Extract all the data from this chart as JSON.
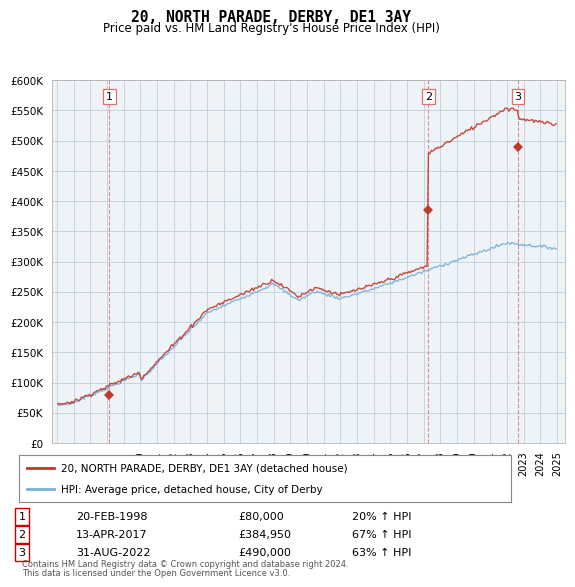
{
  "title": "20, NORTH PARADE, DERBY, DE1 3AY",
  "subtitle": "Price paid vs. HM Land Registry's House Price Index (HPI)",
  "sale_dates": [
    "20-FEB-1998",
    "13-APR-2017",
    "31-AUG-2022"
  ],
  "sale_prices": [
    80000,
    384950,
    490000
  ],
  "sale_hpi_pct": [
    "20% ↑ HPI",
    "67% ↑ HPI",
    "63% ↑ HPI"
  ],
  "sale_years": [
    1998.13,
    2017.28,
    2022.66
  ],
  "sale_labels": [
    "1",
    "2",
    "3"
  ],
  "hpi_line_color": "#7bafd4",
  "price_line_color": "#c0392b",
  "sale_marker_color": "#c0392b",
  "dashed_line_color": "#e07070",
  "grid_color": "#c8d4e0",
  "chart_bg_color": "#eef3f8",
  "bg_color": "#ffffff",
  "ylim": [
    0,
    600000
  ],
  "xlim_start": 1994.7,
  "xlim_end": 2025.5,
  "yticks": [
    0,
    50000,
    100000,
    150000,
    200000,
    250000,
    300000,
    350000,
    400000,
    450000,
    500000,
    550000,
    600000
  ],
  "ytick_labels": [
    "£0",
    "£50K",
    "£100K",
    "£150K",
    "£200K",
    "£250K",
    "£300K",
    "£350K",
    "£400K",
    "£450K",
    "£500K",
    "£550K",
    "£600K"
  ],
  "xtick_years": [
    1995,
    1996,
    1997,
    1998,
    1999,
    2000,
    2001,
    2002,
    2003,
    2004,
    2005,
    2006,
    2007,
    2008,
    2009,
    2010,
    2011,
    2012,
    2013,
    2014,
    2015,
    2016,
    2017,
    2018,
    2019,
    2020,
    2021,
    2022,
    2023,
    2024,
    2025
  ],
  "legend_line1": "20, NORTH PARADE, DERBY, DE1 3AY (detached house)",
  "legend_line2": "HPI: Average price, detached house, City of Derby",
  "footer_line1": "Contains HM Land Registry data © Crown copyright and database right 2024.",
  "footer_line2": "This data is licensed under the Open Government Licence v3.0."
}
